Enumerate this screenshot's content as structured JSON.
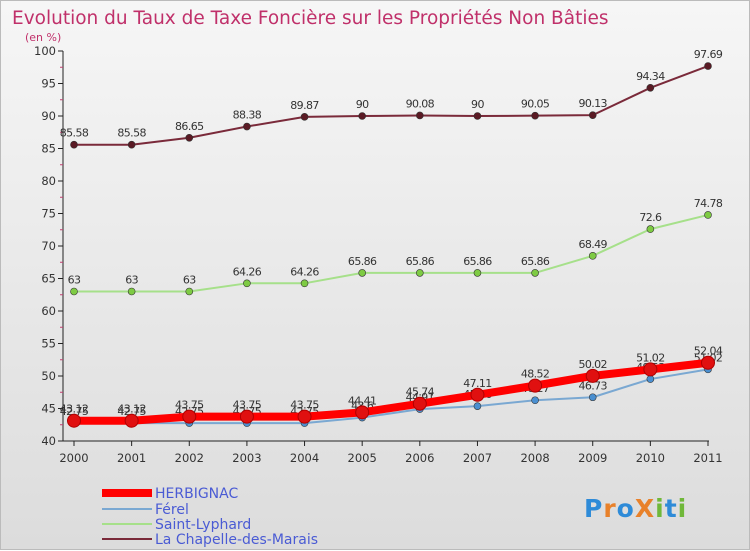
{
  "chart_data": {
    "type": "line",
    "title": "Evolution du Taux de Taxe Foncière sur les Propriétés Non Bâties",
    "subtitle": "(en %)",
    "x": [
      "2000",
      "2001",
      "2002",
      "2003",
      "2004",
      "2005",
      "2006",
      "2007",
      "2008",
      "2009",
      "2010",
      "2011"
    ],
    "ylim": [
      40,
      100
    ],
    "yticks": [
      "40",
      "45",
      "50",
      "55",
      "60",
      "65",
      "70",
      "75",
      "80",
      "85",
      "90",
      "95",
      "100"
    ],
    "grid": false,
    "series": [
      {
        "name": "La Chapelle-des-Marais",
        "color": "#7a2a3a",
        "markerColor": "#5a1a24",
        "values": [
          85.58,
          85.58,
          86.65,
          88.38,
          89.87,
          90,
          90.08,
          90,
          90.05,
          90.13,
          94.34,
          97.69
        ],
        "labels": [
          "85.58",
          "85.58",
          "86.65",
          "88.38",
          "89.87",
          "90",
          "90.08",
          "90",
          "90.05",
          "90.13",
          "94.34",
          "97.69"
        ]
      },
      {
        "name": "Saint-Lyphard",
        "color": "#a6e08a",
        "markerColor": "#7ecb43",
        "values": [
          63,
          63,
          63,
          64.26,
          64.26,
          65.86,
          65.86,
          65.86,
          65.86,
          68.49,
          72.6,
          74.78
        ],
        "labels": [
          "63",
          "63",
          "63",
          "64.26",
          "64.26",
          "65.86",
          "65.86",
          "65.86",
          "65.86",
          "68.49",
          "72.6",
          "74.78"
        ]
      },
      {
        "name": "Férel",
        "color": "#7aa8d2",
        "markerColor": "#4a8fd0",
        "values": [
          42.75,
          42.75,
          42.75,
          42.75,
          42.75,
          43.6,
          44.91,
          45.36,
          46.27,
          46.73,
          49.53,
          51.02
        ],
        "labels": [
          "42.75",
          "42.75",
          "42.75",
          "42.75",
          "42.75",
          "43.6",
          "44.91",
          "45.36",
          "46.27",
          "46.73",
          "49.53",
          "51.02"
        ]
      },
      {
        "name": "HERBIGNAC",
        "color": "#ff0000",
        "markerColor": "#e01010",
        "values": [
          43.12,
          43.12,
          43.75,
          43.75,
          43.75,
          44.41,
          45.74,
          47.11,
          48.52,
          50.02,
          51.02,
          52.04
        ],
        "labels": [
          "43.12",
          "43.12",
          "43.75",
          "43.75",
          "43.75",
          "44.41",
          "45.74",
          "47.11",
          "48.52",
          "50.02",
          "51.02",
          "52.04"
        ]
      }
    ],
    "legend": {
      "placement": "bottom-left",
      "items": [
        "HERBIGNAC",
        "Férel",
        "Saint-Lyphard",
        "La Chapelle-des-Marais"
      ],
      "colors": [
        "#ff0000",
        "#7aa8d2",
        "#a6e08a",
        "#7a2a3a"
      ]
    }
  },
  "logo": {
    "text": "ProXiti",
    "letters": [
      "P",
      "r",
      "o",
      "X",
      "i",
      "t",
      "i"
    ],
    "colors": [
      "#2e8bd8",
      "#e8812a",
      "#2e8bd8",
      "#e8812a",
      "#70b83a",
      "#2e8bd8",
      "#70b83a"
    ]
  }
}
